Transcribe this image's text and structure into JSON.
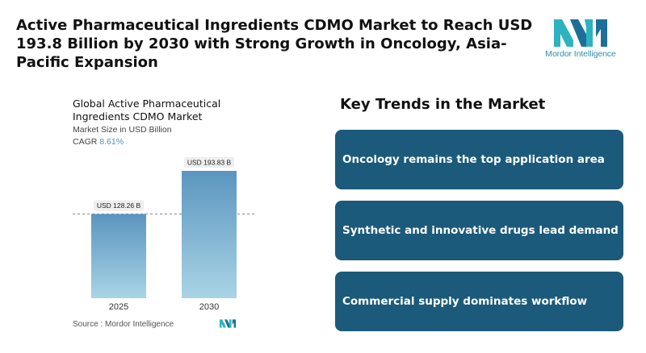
{
  "headline": "Active Pharmaceutical Ingredients CDMO Market to Reach USD 193.8 Billion by 2030 with Strong Growth in Oncology, Asia-Pacific Expansion",
  "logo": {
    "text": "Mordor Intelligence",
    "icon": "mordor-intelligence-logo",
    "colors": [
      "#2bb3c0",
      "#1d6f97"
    ]
  },
  "chart": {
    "subtitle": "Market Size in USD Billion",
    "cagr_label": "CAGR",
    "cagr_value": "8.61%"
  },
  "chart_data": {
    "type": "bar",
    "title": "Global Active Pharmaceutical Ingredients CDMO Market",
    "categories": [
      "2025",
      "2030"
    ],
    "values": [
      128.26,
      193.83
    ],
    "data_labels": [
      "USD 128.26 B",
      "USD 193.83 B"
    ],
    "ylabel": "Market Size in USD Billion",
    "ylim": [
      0,
      200
    ],
    "grid": false,
    "reference_line_value": 128.26,
    "bar_color_top": "#5b95bf",
    "bar_color_bottom": "#a9d4e6"
  },
  "source": "Source :  Mordor Intelligence",
  "trends": {
    "title": "Key Trends in the Market",
    "items": [
      "Oncology remains the top application area",
      "Synthetic and innovative drugs lead demand",
      "Commercial supply dominates workflow"
    ],
    "card_color": "#1b5a7a"
  }
}
